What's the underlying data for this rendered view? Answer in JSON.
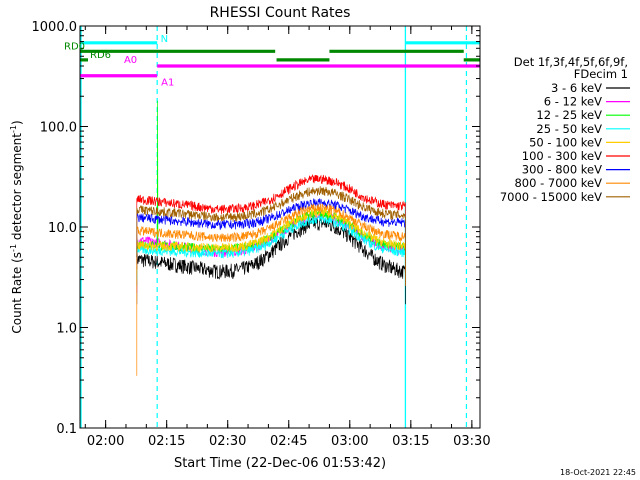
{
  "chart_data": {
    "type": "line",
    "title": "RHESSI Count Rates",
    "xlabel": "Start Time (22-Dec-06 01:53:42)",
    "ylabel_main": "Count Rate (s",
    "ylabel_sup": "-1",
    "ylabel_rest": " detector segment",
    "ylabel_sup2": "-1",
    "ylabel_end": ")",
    "yscale": "log",
    "ylim": [
      0.1,
      1000
    ],
    "xlim": [
      "01:53:42",
      "03:32:00"
    ],
    "x_ticks": [
      "02:00",
      "02:15",
      "02:30",
      "02:45",
      "03:00",
      "03:15",
      "03:30"
    ],
    "y_ticks": [
      "0.1",
      "1.0",
      "10.0",
      "100.0",
      "1000.0"
    ],
    "legend_header": [
      "Det 1f,3f,4f,5f,6f,9f,",
      "FDecim 1"
    ],
    "timestamp": "18-Oct-2021 22:45",
    "series": [
      {
        "name": "3 - 6 keV",
        "color": "#000000",
        "start": 4.8,
        "trough": 3.6,
        "peak": 11.0,
        "end": 3.5
      },
      {
        "name": "6 - 12 keV",
        "color": "#ff00ff",
        "start": 7.5,
        "trough": 5.6,
        "peak": 13.0,
        "end": 5.8
      },
      {
        "name": "12 - 25 keV",
        "color": "#00ff00",
        "start": 6.8,
        "trough": 6.0,
        "peak": 13.5,
        "end": 6.2
      },
      {
        "name": "25 - 50 keV",
        "color": "#00ffff",
        "start": 6.0,
        "trough": 5.4,
        "peak": 12.0,
        "end": 5.5
      },
      {
        "name": "50 - 100 keV",
        "color": "#ffcc00",
        "start": 6.6,
        "trough": 6.2,
        "peak": 14.0,
        "end": 6.4
      },
      {
        "name": "100 - 300 keV",
        "color": "#ff0000",
        "start": 19.0,
        "trough": 15.0,
        "peak": 30.0,
        "end": 16.0
      },
      {
        "name": "300 - 800 keV",
        "color": "#0000ff",
        "start": 12.5,
        "trough": 10.5,
        "peak": 17.5,
        "end": 11.0
      },
      {
        "name": "800 - 7000 keV",
        "color": "#ff8800",
        "start": 9.2,
        "trough": 7.8,
        "peak": 15.5,
        "end": 8.0
      },
      {
        "name": "7000 - 15000 keV",
        "color": "#a06000",
        "start": 15.0,
        "trough": 12.5,
        "peak": 23.0,
        "end": 13.0
      }
    ],
    "data_window": [
      "02:07:40",
      "03:13:40"
    ],
    "peak_time": "02:52:30",
    "spike_time": "02:12:40",
    "spike_value": 180,
    "vlines_solid": [
      "01:53:42",
      "03:13:40"
    ],
    "vlines_dashed": [
      "02:12:40",
      "03:28:40"
    ],
    "flag_lines": [
      {
        "label": "N",
        "color": "#00ffff",
        "y": 680,
        "segments": [
          [
            "01:53:42",
            "02:12:40"
          ],
          [
            "03:13:40",
            "03:32:00"
          ]
        ]
      },
      {
        "label": "RD0",
        "color": "#008800",
        "y": 560,
        "segments": [
          [
            "01:53:42",
            "02:41:40"
          ],
          [
            "02:55:00",
            "03:28:00"
          ]
        ]
      },
      {
        "label": "RD6",
        "color": "#008800",
        "y": 460,
        "segments": [
          [
            "01:53:42",
            "01:55:40"
          ],
          [
            "02:42:00",
            "02:55:00"
          ],
          [
            "03:28:00",
            "03:32:00"
          ]
        ]
      },
      {
        "label": "A0",
        "color": "#ff00ff",
        "y": 400,
        "segments": [
          [
            "02:12:40",
            "03:32:00"
          ]
        ]
      },
      {
        "label": "A1",
        "color": "#ff00ff",
        "y": 320,
        "segments": [
          [
            "01:53:42",
            "02:12:40"
          ]
        ]
      }
    ]
  }
}
